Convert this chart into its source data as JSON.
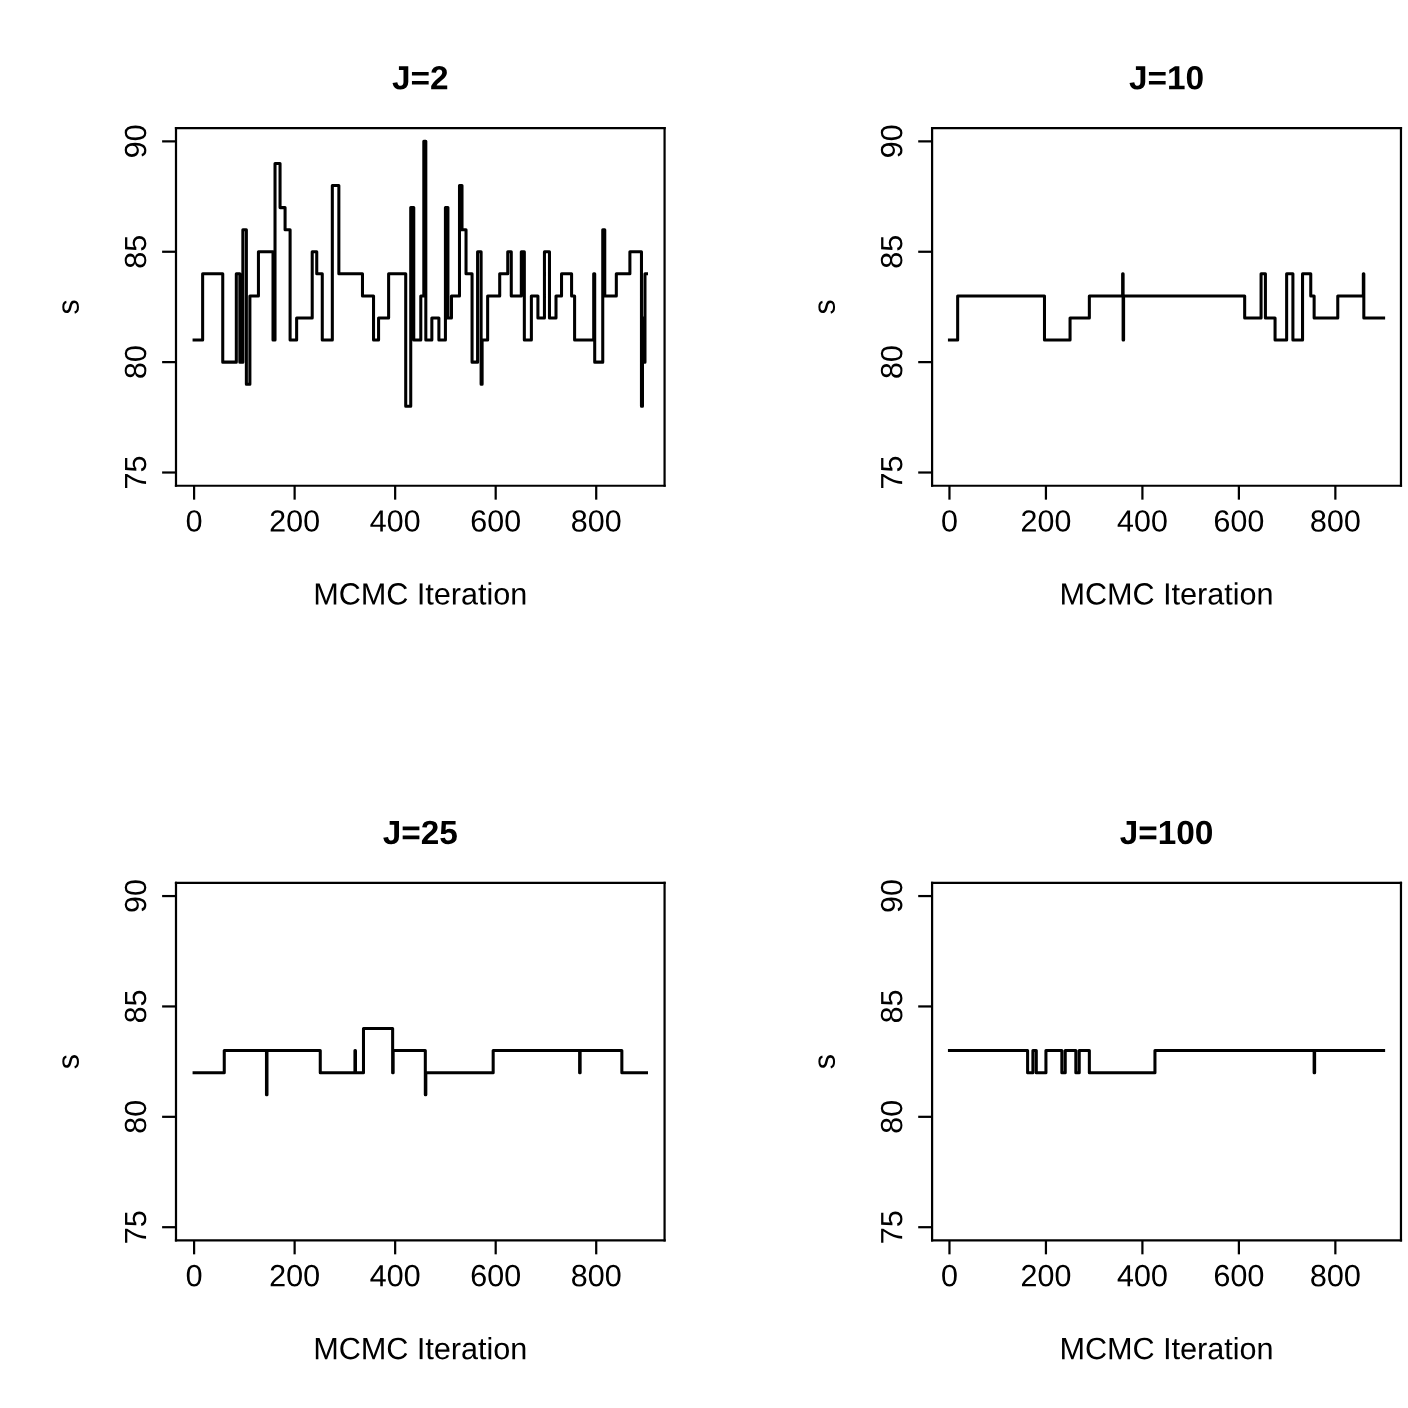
{
  "chart_data": [
    {
      "type": "step",
      "title": "J=2",
      "xlabel": "MCMC Iteration",
      "ylabel": "s",
      "color": "#000000",
      "xlim": [
        -36,
        936
      ],
      "ylim": [
        74.4,
        90.6
      ],
      "xticks": [
        0,
        200,
        400,
        600,
        800
      ],
      "yticks": [
        75,
        80,
        85,
        90
      ],
      "x": [
        0,
        17,
        57,
        84,
        91,
        97,
        104,
        111,
        128,
        157,
        161,
        171,
        181,
        191,
        204,
        235,
        244,
        255,
        275,
        288,
        335,
        357,
        367,
        387,
        421,
        431,
        437,
        451,
        457,
        461,
        473,
        487,
        500,
        505,
        512,
        528,
        533,
        541,
        553,
        564,
        571,
        573,
        584,
        608,
        624,
        631,
        651,
        657,
        671,
        684,
        697,
        707,
        720,
        731,
        751,
        757,
        795,
        797,
        813,
        817,
        840,
        867,
        890,
        892,
        895,
        897,
        900
      ],
      "values": [
        81,
        84,
        80,
        84,
        80,
        86,
        79,
        83,
        85,
        81,
        89,
        87,
        86,
        81,
        82,
        85,
        84,
        81,
        88,
        84,
        83,
        81,
        82,
        84,
        78,
        87,
        81,
        83,
        90,
        81,
        82,
        81,
        87,
        82,
        83,
        88,
        86,
        84,
        80,
        85,
        79,
        81,
        83,
        84,
        85,
        83,
        85,
        81,
        83,
        82,
        85,
        82,
        83,
        84,
        83,
        81,
        84,
        80,
        86,
        83,
        84,
        85,
        78,
        82,
        80,
        84,
        84
      ]
    },
    {
      "type": "step",
      "title": "J=10",
      "xlabel": "MCMC Iteration",
      "ylabel": "s",
      "color": "#000000",
      "xlim": [
        -36,
        936
      ],
      "ylim": [
        74.4,
        90.6
      ],
      "xticks": [
        0,
        200,
        400,
        600,
        800
      ],
      "yticks": [
        75,
        80,
        85,
        90
      ],
      "x": [
        0,
        17,
        197,
        250,
        290,
        359,
        360,
        361,
        612,
        646,
        655,
        675,
        699,
        712,
        732,
        749,
        756,
        805,
        858,
        859,
        900
      ],
      "values": [
        81,
        83,
        81,
        82,
        83,
        84,
        81,
        83,
        82,
        84,
        82,
        81,
        84,
        81,
        84,
        83,
        82,
        83,
        84,
        82,
        82
      ]
    },
    {
      "type": "step",
      "title": "J=25",
      "xlabel": "MCMC Iteration",
      "ylabel": "s",
      "color": "#000000",
      "xlim": [
        -36,
        936
      ],
      "ylim": [
        74.4,
        90.6
      ],
      "xticks": [
        0,
        200,
        400,
        600,
        800
      ],
      "yticks": [
        75,
        80,
        85,
        90
      ],
      "x": [
        0,
        60,
        144,
        145,
        251,
        320,
        321,
        337,
        395,
        396,
        460,
        461,
        595,
        767,
        768,
        851,
        900
      ],
      "values": [
        82,
        83,
        81,
        83,
        82,
        83,
        82,
        84,
        82,
        83,
        81,
        82,
        83,
        82,
        83,
        82,
        82
      ]
    },
    {
      "type": "step",
      "title": "J=100",
      "xlabel": "MCMC Iteration",
      "ylabel": "s",
      "color": "#000000",
      "xlim": [
        -36,
        936
      ],
      "ylim": [
        74.4,
        90.6
      ],
      "xticks": [
        0,
        200,
        400,
        600,
        800
      ],
      "yticks": [
        75,
        80,
        85,
        90
      ],
      "x": [
        0,
        162,
        173,
        180,
        200,
        233,
        240,
        262,
        269,
        290,
        426,
        756,
        757,
        900
      ],
      "values": [
        83,
        82,
        83,
        82,
        83,
        82,
        83,
        82,
        83,
        82,
        83,
        82,
        83,
        83
      ]
    }
  ]
}
